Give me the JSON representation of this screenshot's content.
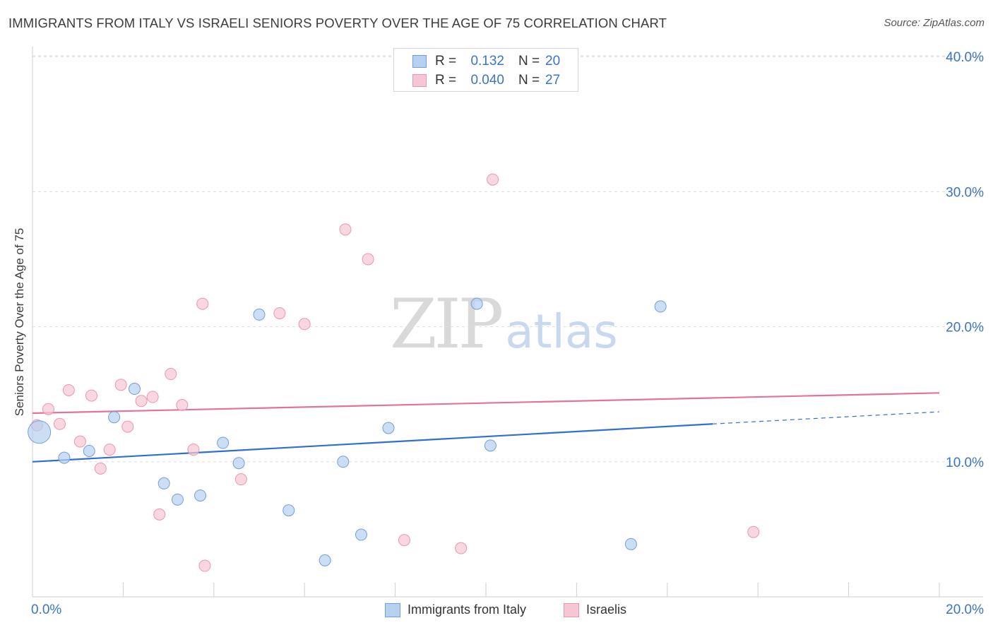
{
  "header": {
    "title": "IMMIGRANTS FROM ITALY VS ISRAELI SENIORS POVERTY OVER THE AGE OF 75 CORRELATION CHART",
    "source": "Source: ZipAtlas.com"
  },
  "watermark": {
    "zip": "ZIP",
    "atlas": "atlas"
  },
  "legend": {
    "rows": [
      {
        "r_label": "R =",
        "r_value": "0.132",
        "n_label": "N =",
        "n_value": "20"
      },
      {
        "r_label": "R =",
        "r_value": "0.040",
        "n_label": "N =",
        "n_value": "27"
      }
    ]
  },
  "bottom_legend": {
    "series1": "Immigrants from Italy",
    "series2": "Israelis"
  },
  "colors": {
    "series1_fill": "#b7d0f0",
    "series1_stroke": "#6f9fdc",
    "series1_line": "#2f6fd0",
    "series2_fill": "#f7c6d4",
    "series2_stroke": "#e897b0",
    "series2_line": "#e2749a",
    "tick_label": "#3b74c6",
    "grid": "#dedede"
  },
  "chart_data": {
    "type": "scatter",
    "title": "IMMIGRANTS FROM ITALY VS ISRAELI SENIORS POVERTY OVER THE AGE OF 75 CORRELATION CHART",
    "xlabel": "",
    "ylabel": "Seniors Poverty Over the Age of 75",
    "xlim": [
      0,
      20
    ],
    "ylim": [
      0,
      41
    ],
    "x_tick_labels": [
      {
        "value": 0,
        "label": "0.0%"
      },
      {
        "value": 20,
        "label": "20.0%"
      }
    ],
    "y_tick_labels": [
      {
        "value": 10,
        "label": "10.0%"
      },
      {
        "value": 20,
        "label": "20.0%"
      },
      {
        "value": 30,
        "label": "30.0%"
      },
      {
        "value": 40,
        "label": "40.0%"
      }
    ],
    "series": [
      {
        "name": "Immigrants from Italy",
        "R": 0.132,
        "N": 20,
        "points": [
          {
            "x": 0.15,
            "y": 12.2,
            "big": true
          },
          {
            "x": 0.7,
            "y": 10.3
          },
          {
            "x": 1.25,
            "y": 10.8
          },
          {
            "x": 1.8,
            "y": 13.3
          },
          {
            "x": 2.25,
            "y": 15.4
          },
          {
            "x": 2.9,
            "y": 8.4
          },
          {
            "x": 3.2,
            "y": 7.2
          },
          {
            "x": 3.7,
            "y": 7.5
          },
          {
            "x": 4.2,
            "y": 11.4
          },
          {
            "x": 4.55,
            "y": 9.9
          },
          {
            "x": 5.0,
            "y": 20.9
          },
          {
            "x": 5.65,
            "y": 6.4
          },
          {
            "x": 6.45,
            "y": 2.7
          },
          {
            "x": 6.85,
            "y": 10.0
          },
          {
            "x": 7.25,
            "y": 4.6
          },
          {
            "x": 7.85,
            "y": 12.5
          },
          {
            "x": 9.8,
            "y": 21.7
          },
          {
            "x": 10.1,
            "y": 11.2
          },
          {
            "x": 13.2,
            "y": 3.9
          },
          {
            "x": 13.85,
            "y": 21.5
          }
        ],
        "trend": {
          "x0": 0,
          "y0": 10.0,
          "x1": 15.0,
          "y1": 12.8,
          "dash_x1": 20,
          "dash_y1": 13.7
        }
      },
      {
        "name": "Israelis",
        "R": 0.04,
        "N": 27,
        "points": [
          {
            "x": 0.1,
            "y": 12.7
          },
          {
            "x": 0.35,
            "y": 13.9
          },
          {
            "x": 0.6,
            "y": 12.8
          },
          {
            "x": 0.8,
            "y": 15.3
          },
          {
            "x": 1.05,
            "y": 11.5
          },
          {
            "x": 1.3,
            "y": 14.9
          },
          {
            "x": 1.5,
            "y": 9.5
          },
          {
            "x": 1.7,
            "y": 10.9
          },
          {
            "x": 1.95,
            "y": 15.7
          },
          {
            "x": 2.1,
            "y": 12.6
          },
          {
            "x": 2.4,
            "y": 14.5
          },
          {
            "x": 2.65,
            "y": 14.8
          },
          {
            "x": 2.8,
            "y": 6.1
          },
          {
            "x": 3.05,
            "y": 16.5
          },
          {
            "x": 3.3,
            "y": 14.2
          },
          {
            "x": 3.55,
            "y": 10.9
          },
          {
            "x": 3.8,
            "y": 2.3
          },
          {
            "x": 3.75,
            "y": 21.7
          },
          {
            "x": 4.6,
            "y": 8.7
          },
          {
            "x": 5.45,
            "y": 21.0
          },
          {
            "x": 6.0,
            "y": 20.2
          },
          {
            "x": 6.9,
            "y": 27.2
          },
          {
            "x": 7.4,
            "y": 25.0
          },
          {
            "x": 8.2,
            "y": 4.2
          },
          {
            "x": 9.45,
            "y": 3.6
          },
          {
            "x": 10.15,
            "y": 30.9
          },
          {
            "x": 15.9,
            "y": 4.8
          }
        ],
        "trend": {
          "x0": 0,
          "y0": 13.6,
          "x1": 20,
          "y1": 15.1
        }
      }
    ]
  }
}
